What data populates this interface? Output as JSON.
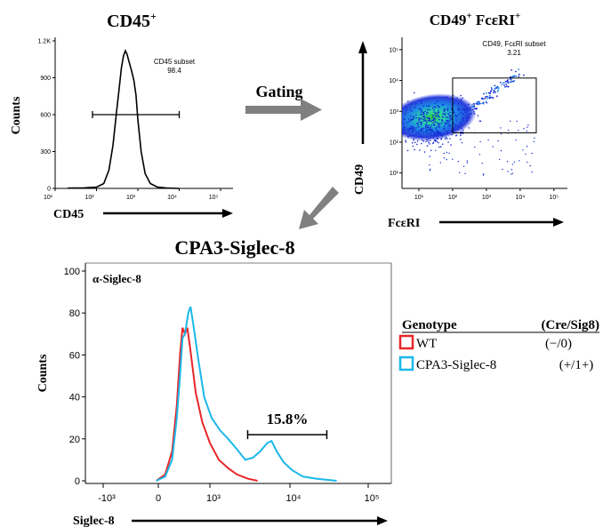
{
  "chart_data": [
    {
      "type": "line",
      "title": "CD45+",
      "title_base": "CD45",
      "title_sup": "+",
      "xlabel": "CD45",
      "ylabel": "Counts",
      "x_scale": "log",
      "x_ticks": [
        "10¹",
        "10²",
        "10³",
        "10⁴",
        "10⁵"
      ],
      "x_tick_values": [
        10,
        100,
        1000,
        10000,
        100000
      ],
      "y_ticks": [
        "0",
        "300",
        "600",
        "900",
        "1.2K"
      ],
      "y_tick_values": [
        0,
        300,
        600,
        900,
        1200
      ],
      "ylim": [
        0,
        1200
      ],
      "series": [
        {
          "values": [
            [
              20,
              2
            ],
            [
              50,
              4
            ],
            [
              100,
              10
            ],
            [
              150,
              40
            ],
            [
              200,
              150
            ],
            [
              250,
              350
            ],
            [
              300,
              600
            ],
            [
              350,
              800
            ],
            [
              400,
              980
            ],
            [
              450,
              1080
            ],
            [
              500,
              1120
            ],
            [
              550,
              1090
            ],
            [
              600,
              1040
            ],
            [
              700,
              960
            ],
            [
              800,
              880
            ],
            [
              900,
              760
            ],
            [
              1000,
              560
            ],
            [
              1200,
              300
            ],
            [
              1500,
              120
            ],
            [
              2000,
              40
            ],
            [
              3000,
              10
            ],
            [
              5000,
              3
            ],
            [
              10000,
              0
            ]
          ]
        }
      ],
      "gate": {
        "label": "CD45 subset",
        "value": "98.4",
        "x_range": [
          80,
          10000
        ],
        "y": 600
      }
    },
    {
      "type": "scatter",
      "title": "CD49+ FcεRI+",
      "title_parts": [
        "CD49",
        "+",
        " FcεRI",
        "+"
      ],
      "xlabel": "FcεRI",
      "ylabel": "CD49",
      "x_scale": "log",
      "y_scale": "log",
      "x_ticks": [
        "10¹",
        "10²",
        "10³",
        "10⁴",
        "10⁵"
      ],
      "x_tick_values": [
        10,
        100,
        1000,
        10000,
        100000
      ],
      "y_ticks": [
        "10¹",
        "10²",
        "10³",
        "10⁴",
        "10⁵"
      ],
      "y_tick_values": [
        10,
        100,
        1000,
        10000,
        100000
      ],
      "density_center": [
        30,
        400
      ],
      "gate": {
        "label": "CD49, FcεRI subset",
        "value": "3.21",
        "x_range": [
          100,
          30000
        ],
        "y_range": [
          200,
          12000
        ]
      }
    },
    {
      "type": "line",
      "title": "CPA3-Siglec-8",
      "panel_label": "α-Siglec-8",
      "xlabel": "Siglec-8",
      "ylabel": "Counts",
      "x_scale": "biexponential",
      "x_ticks": [
        "-10³",
        "0",
        "10³",
        "10⁴",
        "10⁵"
      ],
      "x_tick_values": [
        -1000,
        0,
        1000,
        10000,
        100000
      ],
      "y_ticks": [
        "0",
        "20",
        "40",
        "60",
        "80",
        "100"
      ],
      "y_tick_values": [
        0,
        20,
        40,
        60,
        80,
        100
      ],
      "ylim": [
        0,
        100
      ],
      "series": [
        {
          "name": "WT",
          "color": "#e8262a",
          "values": [
            [
              -40,
              0
            ],
            [
              60,
              3
            ],
            [
              160,
              14
            ],
            [
              240,
              36
            ],
            [
              300,
              60
            ],
            [
              350,
              73
            ],
            [
              400,
              70
            ],
            [
              450,
              73
            ],
            [
              520,
              62
            ],
            [
              640,
              42
            ],
            [
              800,
              28
            ],
            [
              1000,
              18
            ],
            [
              1300,
              10
            ],
            [
              1700,
              6
            ],
            [
              2200,
              3
            ],
            [
              3000,
              1
            ],
            [
              4000,
              0
            ]
          ]
        },
        {
          "name": "CPA3-Siglec-8",
          "color": "#1ab7ea",
          "values": [
            [
              -40,
              0
            ],
            [
              60,
              2
            ],
            [
              160,
              10
            ],
            [
              240,
              30
            ],
            [
              300,
              50
            ],
            [
              350,
              68
            ],
            [
              400,
              70
            ],
            [
              470,
              80
            ],
            [
              520,
              83
            ],
            [
              580,
              75
            ],
            [
              700,
              58
            ],
            [
              850,
              40
            ],
            [
              1050,
              30
            ],
            [
              1350,
              24
            ],
            [
              1700,
              20
            ],
            [
              2200,
              15
            ],
            [
              2800,
              10
            ],
            [
              3500,
              11
            ],
            [
              4300,
              14
            ],
            [
              5300,
              18
            ],
            [
              6000,
              19
            ],
            [
              7000,
              14
            ],
            [
              8500,
              9
            ],
            [
              11000,
              5
            ],
            [
              15000,
              2
            ],
            [
              22000,
              1
            ],
            [
              40000,
              0
            ]
          ]
        }
      ],
      "gate": {
        "value": "15.8%",
        "x_range": [
          3000,
          30000
        ],
        "y": 22
      }
    }
  ],
  "gating_label": "Gating",
  "legend": {
    "header_left": "Genotype",
    "header_right": "(Cre/Sig8)",
    "entries": [
      {
        "label": "WT",
        "value": "(−/0)",
        "color": "#e8262a"
      },
      {
        "label": "CPA3-Siglec-8",
        "value": "(+/1+)",
        "color": "#1ab7ea"
      }
    ]
  },
  "arrow_color": "#808080"
}
